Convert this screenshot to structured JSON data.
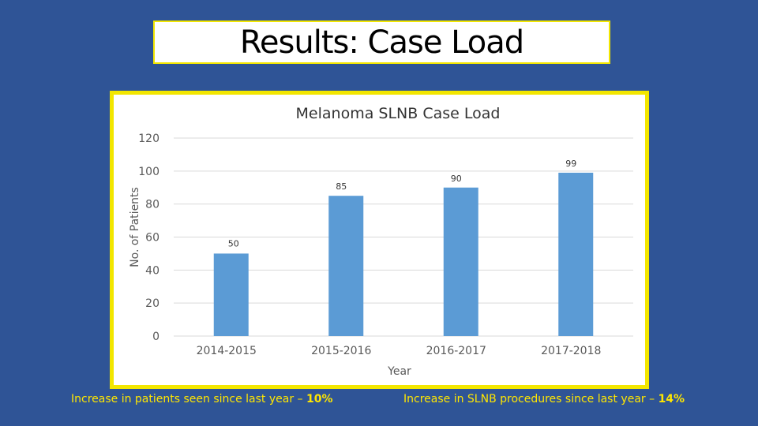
{
  "slide_title": "Results: Case Load",
  "footnotes": {
    "left": {
      "text": "Increase in patients seen since last year – ",
      "value": "10%"
    },
    "right": {
      "text": "Increase in SLNB procedures since last year – ",
      "value": "14%"
    }
  },
  "colors": {
    "background": "#2f5496",
    "frame": "#f2e600",
    "bar": "#5b9bd5",
    "footnote": "#ffe600"
  },
  "chart_data": {
    "type": "bar",
    "title": "Melanoma SLNB Case Load",
    "xlabel": "Year",
    "ylabel": "No. of Patients",
    "categories": [
      "2014-2015",
      "2015-2016",
      "2016-2017",
      "2017-2018"
    ],
    "values": [
      50,
      85,
      90,
      99
    ],
    "value_labels": [
      "50",
      "85",
      "90",
      "99"
    ],
    "ylim": [
      0,
      120
    ],
    "yticks": [
      "0",
      "20",
      "40",
      "60",
      "80",
      "100",
      "120"
    ],
    "grid": true,
    "legend": "none"
  }
}
